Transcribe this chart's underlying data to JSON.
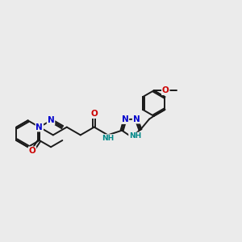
{
  "background_color": "#ebebeb",
  "bond_color": "#1a1a1a",
  "bond_width": 1.4,
  "atom_colors": {
    "N": "#0000cc",
    "O": "#cc0000",
    "NH": "#008888"
  },
  "font_size": 7.5
}
